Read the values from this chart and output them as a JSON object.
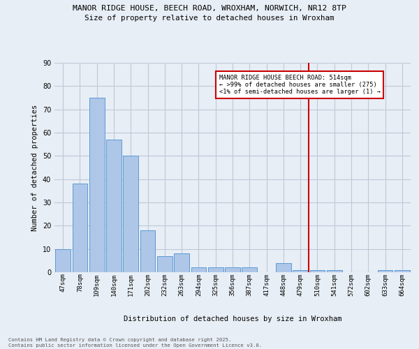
{
  "title1": "MANOR RIDGE HOUSE, BEECH ROAD, WROXHAM, NORWICH, NR12 8TP",
  "title2": "Size of property relative to detached houses in Wroxham",
  "xlabel": "Distribution of detached houses by size in Wroxham",
  "ylabel": "Number of detached properties",
  "categories": [
    "47sqm",
    "78sqm",
    "109sqm",
    "140sqm",
    "171sqm",
    "202sqm",
    "232sqm",
    "263sqm",
    "294sqm",
    "325sqm",
    "356sqm",
    "387sqm",
    "417sqm",
    "448sqm",
    "479sqm",
    "510sqm",
    "541sqm",
    "572sqm",
    "602sqm",
    "633sqm",
    "664sqm"
  ],
  "values": [
    10,
    38,
    75,
    57,
    50,
    18,
    7,
    8,
    2,
    2,
    2,
    2,
    0,
    4,
    1,
    1,
    1,
    0,
    0,
    1,
    1
  ],
  "bar_color": "#aec6e8",
  "bar_edge_color": "#5a9bd5",
  "grid_color": "#c0c8d8",
  "background_color": "#e8eef5",
  "vline_x_index": 15,
  "vline_color": "#cc0000",
  "annotation_text": "MANOR RIDGE HOUSE BEECH ROAD: 514sqm\n← >99% of detached houses are smaller (275)\n<1% of semi-detached houses are larger (1) →",
  "annotation_box_color": "#cc0000",
  "footer_text": "Contains HM Land Registry data © Crown copyright and database right 2025.\nContains public sector information licensed under the Open Government Licence v3.0.",
  "ylim": [
    0,
    90
  ],
  "yticks": [
    0,
    10,
    20,
    30,
    40,
    50,
    60,
    70,
    80,
    90
  ]
}
